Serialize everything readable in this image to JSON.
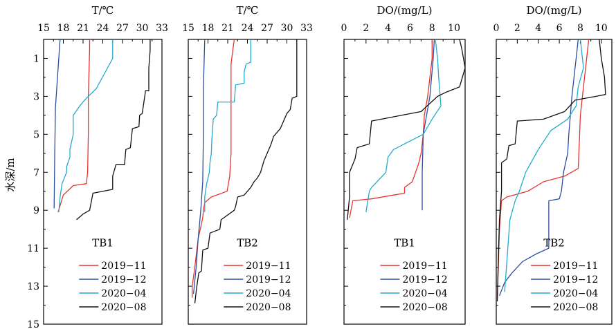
{
  "chart_data": {
    "type": "line",
    "ylabel": "水深/m",
    "ylim": [
      15,
      0
    ],
    "y_ticks": [
      1,
      3,
      5,
      7,
      9,
      11,
      13,
      15
    ],
    "colors": {
      "2019-11": "#e8322f",
      "2019-12": "#2b4ea0",
      "2020-04": "#23aacb",
      "2020-08": "#111111"
    },
    "panels": [
      {
        "title": "T/℃",
        "xlim": [
          15,
          33
        ],
        "x_ticks": [
          15,
          18,
          21,
          24,
          27,
          30,
          33
        ],
        "site_label": "TB1",
        "series": [
          {
            "name": "2019-11",
            "points": [
              [
                22,
                0
              ],
              [
                22,
                0.5
              ],
              [
                21.8,
                3
              ],
              [
                21.8,
                5
              ],
              [
                21.7,
                7
              ],
              [
                21.5,
                7.6
              ],
              [
                19.5,
                7.7
              ],
              [
                18,
                8.2
              ],
              [
                17.2,
                9.1
              ]
            ]
          },
          {
            "name": "2019-12",
            "points": [
              [
                17.5,
                0
              ],
              [
                17.3,
                1
              ],
              [
                16.8,
                3.6
              ],
              [
                16.7,
                6
              ],
              [
                16.6,
                8.9
              ]
            ]
          },
          {
            "name": "2020-04",
            "points": [
              [
                25.5,
                0
              ],
              [
                25.5,
                1
              ],
              [
                23,
                2.6
              ],
              [
                21.5,
                3.1
              ],
              [
                20.5,
                3.5
              ],
              [
                19.5,
                4
              ],
              [
                19.5,
                5
              ],
              [
                19,
                5.8
              ],
              [
                19,
                6.2
              ],
              [
                18.5,
                6.7
              ],
              [
                18.5,
                7
              ],
              [
                17.8,
                7.6
              ],
              [
                17.5,
                8.3
              ],
              [
                17.3,
                9.1
              ]
            ]
          },
          {
            "name": "2020-08",
            "points": [
              [
                31.2,
                0
              ],
              [
                31.2,
                0.6
              ],
              [
                31,
                1.5
              ],
              [
                31,
                2.7
              ],
              [
                30.5,
                2.7
              ],
              [
                30,
                3.9
              ],
              [
                29.6,
                4
              ],
              [
                29.5,
                4.6
              ],
              [
                28.5,
                4.7
              ],
              [
                28.2,
                5.7
              ],
              [
                27.5,
                5.8
              ],
              [
                27.3,
                6.6
              ],
              [
                26,
                6.6
              ],
              [
                25.5,
                7.2
              ],
              [
                25.5,
                7.9
              ],
              [
                22.5,
                8.1
              ],
              [
                22,
                9
              ],
              [
                21,
                9.2
              ],
              [
                20,
                9.5
              ]
            ]
          }
        ]
      },
      {
        "title": "T/℃",
        "xlim": [
          15,
          33
        ],
        "x_ticks": [
          15,
          18,
          21,
          24,
          27,
          30,
          33
        ],
        "site_label": "TB2",
        "series": [
          {
            "name": "2019-11",
            "points": [
              [
                22,
                0
              ],
              [
                21.8,
                0.5
              ],
              [
                21.5,
                1.3
              ],
              [
                21.5,
                6
              ],
              [
                21.3,
                7.2
              ],
              [
                20.9,
                8
              ],
              [
                18.5,
                8.3
              ],
              [
                17.5,
                8.6
              ],
              [
                17.3,
                9
              ],
              [
                17.2,
                9.4
              ],
              [
                16.5,
                10.5
              ],
              [
                16,
                12
              ],
              [
                15.6,
                13
              ],
              [
                15.6,
                13.6
              ]
            ]
          },
          {
            "name": "2019-12",
            "points": [
              [
                17.5,
                0
              ],
              [
                17.3,
                2.5
              ],
              [
                17.3,
                5
              ],
              [
                17.2,
                7.5
              ],
              [
                16.9,
                9
              ],
              [
                16.5,
                10.5
              ],
              [
                16.2,
                12
              ],
              [
                15.8,
                13.4
              ]
            ]
          },
          {
            "name": "2020-04",
            "points": [
              [
                24.5,
                0
              ],
              [
                24.5,
                1.2
              ],
              [
                23.8,
                1.3
              ],
              [
                23.5,
                1.7
              ],
              [
                23.5,
                2.3
              ],
              [
                22.2,
                2.4
              ],
              [
                22,
                3.3
              ],
              [
                19.5,
                3.3
              ],
              [
                19.3,
                4
              ],
              [
                18.8,
                4.2
              ],
              [
                18.6,
                5.2
              ],
              [
                18.5,
                6
              ],
              [
                18.3,
                6.5
              ],
              [
                18.2,
                7
              ],
              [
                17.8,
                7.6
              ],
              [
                17.5,
                8.3
              ],
              [
                17.5,
                9.1
              ]
            ]
          },
          {
            "name": "2020-08",
            "points": [
              [
                31.5,
                0
              ],
              [
                31.5,
                3
              ],
              [
                30.8,
                3.1
              ],
              [
                30.5,
                3.7
              ],
              [
                30,
                3.9
              ],
              [
                29,
                4.7
              ],
              [
                28,
                5.1
              ],
              [
                27.5,
                5.6
              ],
              [
                27,
                6
              ],
              [
                26.5,
                6.4
              ],
              [
                26,
                7
              ],
              [
                25.5,
                7.3
              ],
              [
                25,
                7.5
              ],
              [
                24.5,
                7.8
              ],
              [
                23.5,
                8.2
              ],
              [
                22.5,
                8.3
              ],
              [
                22.2,
                8.8
              ],
              [
                22,
                9
              ],
              [
                20,
                9.5
              ],
              [
                19.8,
                10
              ],
              [
                18.3,
                10.2
              ],
              [
                18,
                11
              ],
              [
                17.2,
                11.1
              ],
              [
                17,
                12.2
              ],
              [
                16.6,
                12.3
              ],
              [
                16.3,
                13
              ],
              [
                16.2,
                13.3
              ],
              [
                16,
                13.9
              ]
            ]
          }
        ]
      },
      {
        "title": "DO/(mg/L)",
        "xlim": [
          0,
          11
        ],
        "x_ticks": [
          0,
          2,
          4,
          6,
          8,
          10
        ],
        "site_label": "TB1",
        "series": [
          {
            "name": "2019-11",
            "points": [
              [
                8,
                0
              ],
              [
                8,
                1
              ],
              [
                7.8,
                2
              ],
              [
                7.6,
                3
              ],
              [
                7.3,
                4
              ],
              [
                7.2,
                5
              ],
              [
                7,
                6
              ],
              [
                6.8,
                6.5
              ],
              [
                6.5,
                7
              ],
              [
                6.2,
                7.5
              ],
              [
                5.5,
                7.8
              ],
              [
                5.5,
                8.1
              ],
              [
                4.5,
                8.2
              ],
              [
                2.5,
                8.4
              ],
              [
                0.8,
                8.5
              ],
              [
                0.5,
                9.4
              ]
            ]
          },
          {
            "name": "2019-12",
            "points": [
              [
                8.2,
                0
              ],
              [
                8.1,
                1
              ],
              [
                7.8,
                3
              ],
              [
                7.5,
                4
              ],
              [
                7.2,
                5
              ],
              [
                7.1,
                7
              ],
              [
                7.1,
                9
              ]
            ]
          },
          {
            "name": "2020-04",
            "points": [
              [
                8.3,
                0
              ],
              [
                8.5,
                1
              ],
              [
                8.6,
                2
              ],
              [
                8.8,
                3.5
              ],
              [
                8,
                4.2
              ],
              [
                7.2,
                5
              ],
              [
                4.5,
                5.8
              ],
              [
                4,
                6.2
              ],
              [
                3.8,
                7
              ],
              [
                3,
                7.5
              ],
              [
                2.5,
                7.8
              ],
              [
                2.3,
                8
              ],
              [
                2,
                9.1
              ]
            ]
          },
          {
            "name": "2020-08",
            "points": [
              [
                10.5,
                0
              ],
              [
                10.7,
                0.5
              ],
              [
                11,
                1.5
              ],
              [
                10.5,
                2.5
              ],
              [
                9.2,
                2.8
              ],
              [
                8.5,
                3
              ],
              [
                7,
                3.8
              ],
              [
                2.5,
                4.3
              ],
              [
                2.3,
                5.5
              ],
              [
                1.2,
                5.7
              ],
              [
                1,
                6.3
              ],
              [
                0.5,
                7
              ],
              [
                0.5,
                8.3
              ],
              [
                0.3,
                9.5
              ]
            ]
          }
        ]
      },
      {
        "title": "DO/(mg/L)",
        "xlim": [
          0,
          11
        ],
        "x_ticks": [
          0,
          2,
          4,
          6,
          8,
          10
        ],
        "site_label": "TB2",
        "series": [
          {
            "name": "2019-11",
            "points": [
              [
                8.8,
                0
              ],
              [
                8.6,
                1
              ],
              [
                8.3,
                2.5
              ],
              [
                8,
                4
              ],
              [
                7.9,
                5.5
              ],
              [
                7.8,
                6.8
              ],
              [
                6.5,
                7.2
              ],
              [
                4.5,
                7.5
              ],
              [
                3,
                8
              ],
              [
                1,
                8.3
              ],
              [
                0.5,
                8.5
              ],
              [
                0.3,
                10
              ],
              [
                0.2,
                12
              ],
              [
                0.1,
                13.5
              ]
            ]
          },
          {
            "name": "2019-12",
            "points": [
              [
                7.8,
                0
              ],
              [
                7.6,
                1
              ],
              [
                7.2,
                3
              ],
              [
                6.9,
                5
              ],
              [
                6.8,
                6
              ],
              [
                6.4,
                7
              ],
              [
                6.2,
                8
              ],
              [
                6,
                8.4
              ],
              [
                5,
                8.5
              ],
              [
                5,
                11
              ],
              [
                3.8,
                11.3
              ],
              [
                2.5,
                11.7
              ],
              [
                1.5,
                12.3
              ],
              [
                0.8,
                12.8
              ],
              [
                0.3,
                13.5
              ]
            ]
          },
          {
            "name": "2020-04",
            "points": [
              [
                8.0,
                0
              ],
              [
                8.2,
                1
              ],
              [
                8.3,
                1.5
              ],
              [
                7.8,
                2.5
              ],
              [
                7.6,
                3.5
              ],
              [
                6.8,
                4.2
              ],
              [
                5.2,
                4.8
              ],
              [
                4,
                5.8
              ],
              [
                2.8,
                7
              ],
              [
                2.5,
                7.5
              ],
              [
                2.2,
                8
              ],
              [
                1.8,
                8.5
              ],
              [
                1.3,
                9.5
              ],
              [
                1.1,
                11
              ],
              [
                0.8,
                13.3
              ]
            ]
          },
          {
            "name": "2020-08",
            "points": [
              [
                9.8,
                0
              ],
              [
                10,
                1
              ],
              [
                10.3,
                2
              ],
              [
                10.4,
                2.9
              ],
              [
                9.5,
                3
              ],
              [
                8.5,
                3.1
              ],
              [
                7.5,
                3.2
              ],
              [
                6.5,
                3.8
              ],
              [
                4.5,
                4.2
              ],
              [
                2,
                4.3
              ],
              [
                1.8,
                5.5
              ],
              [
                1.2,
                5.6
              ],
              [
                1,
                6.3
              ],
              [
                0.5,
                6.5
              ],
              [
                0.5,
                8
              ],
              [
                0.3,
                9.5
              ],
              [
                0.2,
                11.5
              ],
              [
                0.1,
                13.8
              ]
            ]
          }
        ]
      }
    ],
    "legend": [
      "2019-11",
      "2019-12",
      "2020-04",
      "2020-08"
    ],
    "legend_placement": "bottom-right"
  }
}
